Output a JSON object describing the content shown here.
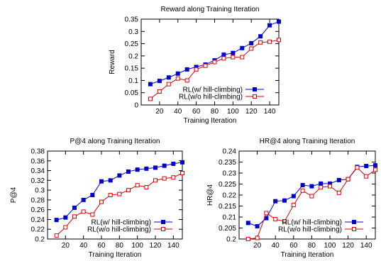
{
  "chart_data": [
    {
      "type": "line",
      "title": "Reward along Training Iteration",
      "xlabel": "Training Iteration",
      "ylabel": "Reward",
      "xlim": [
        0,
        150
      ],
      "ylim": [
        0,
        0.35
      ],
      "xticks": [
        20,
        40,
        60,
        80,
        100,
        120,
        140
      ],
      "xtick_labels": [
        "20",
        "40",
        "60",
        "80",
        "100",
        "120",
        "140"
      ],
      "yticks": [
        0,
        0.05,
        0.1,
        0.15,
        0.2,
        0.25,
        0.3,
        0.35
      ],
      "ytick_labels": [
        "0",
        "0.05",
        "0.1",
        "0.15",
        "0.2",
        "0.25",
        "0.3",
        "0.35"
      ],
      "legend_position": "bottom-right",
      "grid": false,
      "x": [
        10,
        20,
        30,
        40,
        50,
        60,
        70,
        80,
        90,
        100,
        110,
        120,
        130,
        140,
        150
      ],
      "series": [
        {
          "name": "RL(w/ hill-climbing)",
          "color": "#0000cc",
          "marker": "filled-square",
          "values": [
            0.085,
            0.098,
            0.112,
            0.128,
            0.145,
            0.155,
            0.165,
            0.182,
            0.205,
            0.212,
            0.232,
            0.252,
            0.28,
            0.325,
            0.34
          ]
        },
        {
          "name": "RL(w/o hill-climbing)",
          "color": "#dd0000",
          "marker": "open-square",
          "values": [
            0.025,
            0.055,
            0.085,
            0.108,
            0.1,
            0.145,
            0.16,
            0.175,
            0.19,
            0.195,
            0.195,
            0.23,
            0.255,
            0.258,
            0.265
          ]
        }
      ]
    },
    {
      "type": "line",
      "title": "P@4 along Training Iteration",
      "xlabel": "Training Iteration",
      "ylabel": "P@4",
      "xlim": [
        0,
        150
      ],
      "ylim": [
        0.2,
        0.38
      ],
      "xticks": [
        20,
        40,
        60,
        80,
        100,
        120,
        140
      ],
      "xtick_labels": [
        "20",
        "40",
        "60",
        "80",
        "100",
        "120",
        "140"
      ],
      "yticks": [
        0.2,
        0.22,
        0.24,
        0.26,
        0.28,
        0.3,
        0.32,
        0.34,
        0.36,
        0.38
      ],
      "ytick_labels": [
        "0.2",
        "0.22",
        "0.24",
        "0.26",
        "0.28",
        "0.3",
        "0.32",
        "0.34",
        "0.36",
        "0.38"
      ],
      "legend_position": "bottom-right",
      "grid": false,
      "x": [
        10,
        20,
        30,
        40,
        50,
        60,
        70,
        80,
        90,
        100,
        110,
        120,
        130,
        140,
        150
      ],
      "series": [
        {
          "name": "RL(w/ hill-climbing)",
          "color": "#0000cc",
          "marker": "filled-square",
          "values": [
            0.239,
            0.244,
            0.264,
            0.28,
            0.29,
            0.318,
            0.32,
            0.33,
            0.338,
            0.342,
            0.344,
            0.346,
            0.35,
            0.354,
            0.357
          ]
        },
        {
          "name": "RL(w/o hill-climbing)",
          "color": "#dd0000",
          "marker": "open-square",
          "values": [
            0.207,
            0.224,
            0.246,
            0.256,
            0.25,
            0.276,
            0.29,
            0.292,
            0.3,
            0.31,
            0.306,
            0.32,
            0.324,
            0.326,
            0.335
          ]
        }
      ]
    },
    {
      "type": "line",
      "title": "HR@4 along Training Iteration",
      "xlabel": "Training Iteration",
      "ylabel": "HR@4",
      "xlim": [
        0,
        150
      ],
      "ylim": [
        0.2,
        0.24
      ],
      "xticks": [
        20,
        40,
        60,
        80,
        100,
        120,
        140
      ],
      "xtick_labels": [
        "20",
        "40",
        "60",
        "80",
        "100",
        "120",
        "140"
      ],
      "yticks": [
        0.2,
        0.205,
        0.21,
        0.215,
        0.22,
        0.225,
        0.23,
        0.235,
        0.24
      ],
      "ytick_labels": [
        "0.2",
        "0.205",
        "0.21",
        "0.215",
        "0.22",
        "0.225",
        "0.23",
        "0.235",
        "0.24"
      ],
      "legend_position": "bottom-right",
      "grid": false,
      "x": [
        10,
        20,
        30,
        40,
        50,
        60,
        70,
        80,
        90,
        100,
        110,
        120,
        130,
        140,
        150
      ],
      "series": [
        {
          "name": "RL(w/ hill-climbing)",
          "color": "#0000cc",
          "marker": "filled-square",
          "values": [
            0.2073,
            0.2058,
            0.2095,
            0.2172,
            0.2175,
            0.2195,
            0.2245,
            0.224,
            0.2252,
            0.2252,
            0.2268,
            0.2272,
            0.2328,
            0.2332,
            0.2335
          ]
        },
        {
          "name": "RL(w/o hill-climbing)",
          "color": "#dd0000",
          "marker": "open-square",
          "values": [
            0.2,
            0.2005,
            0.2118,
            0.209,
            0.208,
            0.2155,
            0.222,
            0.2195,
            0.2235,
            0.224,
            0.221,
            0.2272,
            0.2325,
            0.2285,
            0.2315
          ]
        }
      ]
    }
  ]
}
